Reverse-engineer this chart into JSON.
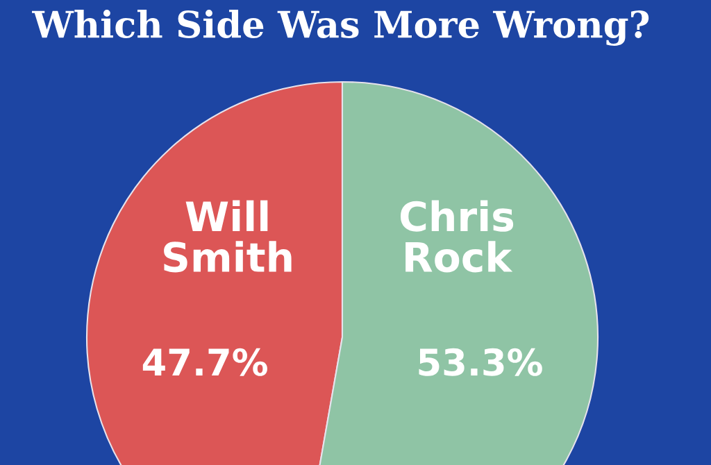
{
  "chart_data": {
    "type": "pie",
    "title": "Which Side Was More Wrong?",
    "categories": [
      "Will\nSmith",
      "Chris\nRock"
    ],
    "values": [
      47.7,
      53.3
    ],
    "colors": [
      "#dc5656",
      "#8fc4a5"
    ],
    "value_labels": [
      "47.7%",
      "53.3%"
    ]
  }
}
